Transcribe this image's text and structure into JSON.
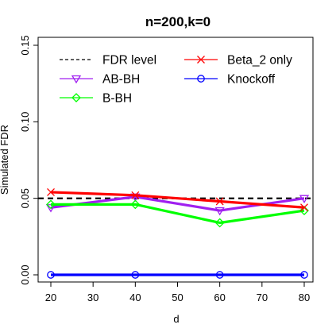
{
  "chart_data": {
    "type": "line",
    "title": "n=200,k=0",
    "xlabel": "d",
    "ylabel": "Simulated FDR",
    "x": [
      20,
      40,
      60,
      80
    ],
    "xlim": [
      20,
      80
    ],
    "ylim": [
      0,
      0.15
    ],
    "xticks": [
      "20",
      "30",
      "40",
      "50",
      "60",
      "70",
      "80"
    ],
    "yticks": [
      "0.00",
      "0.05",
      "0.10",
      "0.15"
    ],
    "grid": false,
    "legend_placement": "top",
    "reference_line": {
      "name": "FDR level",
      "value": 0.05,
      "color": "#000000",
      "style": "dashed"
    },
    "series": [
      {
        "name": "AB-BH",
        "values": [
          0.044,
          0.051,
          0.042,
          0.05
        ],
        "color": "#a020f0",
        "marker": "triangle-down"
      },
      {
        "name": "B-BH",
        "values": [
          0.046,
          0.046,
          0.034,
          0.042
        ],
        "color": "#00ff00",
        "marker": "diamond"
      },
      {
        "name": "Beta_2 only",
        "values": [
          0.054,
          0.052,
          0.048,
          0.044
        ],
        "color": "#ff0000",
        "marker": "x"
      },
      {
        "name": "Knockoff",
        "values": [
          0.0,
          0.0,
          0.0,
          0.0
        ],
        "color": "#0000ff",
        "marker": "circle"
      }
    ],
    "legend": [
      {
        "label": "FDR level",
        "key": "fdr"
      },
      {
        "label": "Beta_2 only",
        "key": "beta2"
      },
      {
        "label": "AB-BH",
        "key": "abbh"
      },
      {
        "label": "Knockoff",
        "key": "knockoff"
      },
      {
        "label": "B-BH",
        "key": "bbh"
      }
    ]
  }
}
